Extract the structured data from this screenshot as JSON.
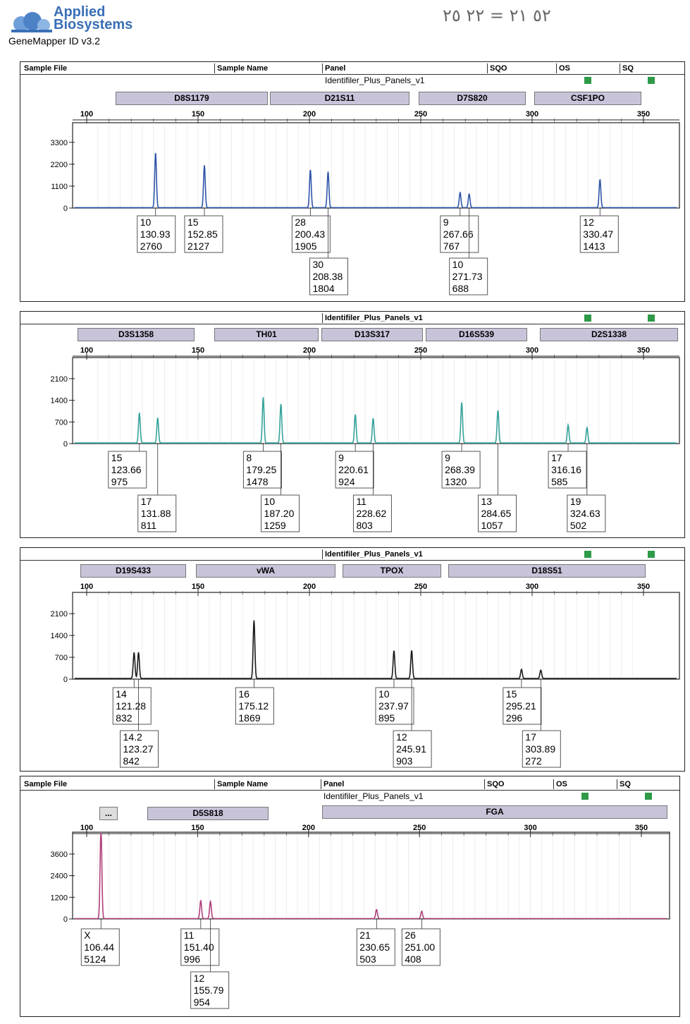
{
  "brand": {
    "line1": "Applied",
    "line2": "Biosystems",
    "product": "GeneMapper ID v3.2",
    "handwritten": "٥٢ ٢١ = ٢٢ ٢٥"
  },
  "header": {
    "sample_file": "Sample File",
    "sample_name": "Sample Name",
    "panel": "Panel",
    "sqo": "SQO",
    "os": "OS",
    "sq": "SQ",
    "panel_value": "Identifiler_Plus_Panels_v1",
    "ellipsis": "..."
  },
  "colors": {
    "blue": "#2f55a8",
    "green": "#35a39a",
    "black": "#1a1a1a",
    "magenta": "#b0407a",
    "locus_bg": "#c9c3da",
    "quality_green": "#2e9a48"
  },
  "chart_data": [
    {
      "type": "line",
      "dye": "blue",
      "x_axis": {
        "min": 100,
        "max": 350,
        "ticks": [
          100,
          150,
          200,
          250,
          300,
          350
        ]
      },
      "y_axis": {
        "min": 0,
        "max": 4000,
        "ticks": [
          0,
          1100,
          2200,
          3300
        ]
      },
      "loci": [
        "D8S1179",
        "D21S11",
        "D7S820",
        "CSF1PO"
      ],
      "peaks": [
        {
          "allele": "10",
          "size": "130.93",
          "height": "2760"
        },
        {
          "allele": "15",
          "size": "152.85",
          "height": "2127"
        },
        {
          "allele": "28",
          "size": "200.43",
          "height": "1905"
        },
        {
          "allele": "30",
          "size": "208.38",
          "height": "1804"
        },
        {
          "allele": "9",
          "size": "267.66",
          "height": "767"
        },
        {
          "allele": "10",
          "size": "271.73",
          "height": "688"
        },
        {
          "allele": "12",
          "size": "330.47",
          "height": "1413"
        }
      ]
    },
    {
      "type": "line",
      "dye": "green",
      "x_axis": {
        "min": 100,
        "max": 350,
        "ticks": [
          100,
          150,
          200,
          250,
          300,
          350
        ]
      },
      "y_axis": {
        "min": 0,
        "max": 2600,
        "ticks": [
          0,
          700,
          1400,
          2100
        ]
      },
      "loci": [
        "D3S1358",
        "TH01",
        "D13S317",
        "D16S539",
        "D2S1338"
      ],
      "peaks": [
        {
          "allele": "15",
          "size": "123.66",
          "height": "975"
        },
        {
          "allele": "17",
          "size": "131.88",
          "height": "811"
        },
        {
          "allele": "8",
          "size": "179.25",
          "height": "1478"
        },
        {
          "allele": "10",
          "size": "187.20",
          "height": "1259"
        },
        {
          "allele": "9",
          "size": "220.61",
          "height": "924"
        },
        {
          "allele": "11",
          "size": "228.62",
          "height": "803"
        },
        {
          "allele": "9",
          "size": "268.39",
          "height": "1320"
        },
        {
          "allele": "13",
          "size": "284.65",
          "height": "1057"
        },
        {
          "allele": "17",
          "size": "316.16",
          "height": "585"
        },
        {
          "allele": "19",
          "size": "324.63",
          "height": "502"
        }
      ]
    },
    {
      "type": "line",
      "dye": "black",
      "x_axis": {
        "min": 100,
        "max": 350,
        "ticks": [
          100,
          150,
          200,
          250,
          300,
          350
        ]
      },
      "y_axis": {
        "min": 0,
        "max": 2600,
        "ticks": [
          0,
          700,
          1400,
          2100
        ]
      },
      "loci": [
        "D19S433",
        "vWA",
        "TPOX",
        "D18S51"
      ],
      "peaks": [
        {
          "allele": "14",
          "size": "121.28",
          "height": "832"
        },
        {
          "allele": "14.2",
          "size": "123.27",
          "height": "842"
        },
        {
          "allele": "16",
          "size": "175.12",
          "height": "1869"
        },
        {
          "allele": "10",
          "size": "237.97",
          "height": "895"
        },
        {
          "allele": "12",
          "size": "245.91",
          "height": "903"
        },
        {
          "allele": "15",
          "size": "295.21",
          "height": "296"
        },
        {
          "allele": "17",
          "size": "303.89",
          "height": "272"
        }
      ]
    },
    {
      "type": "line",
      "dye": "magenta",
      "x_axis": {
        "min": 100,
        "max": 350,
        "ticks": [
          100,
          150,
          200,
          250,
          300,
          350
        ]
      },
      "y_axis": {
        "min": 0,
        "max": 4500,
        "ticks": [
          0,
          1200,
          2400,
          3600
        ]
      },
      "loci": [
        "...",
        "D5S818",
        "FGA"
      ],
      "peaks": [
        {
          "allele": "X",
          "size": "106.44",
          "height": "5124"
        },
        {
          "allele": "11",
          "size": "151.40",
          "height": "996"
        },
        {
          "allele": "12",
          "size": "155.79",
          "height": "954"
        },
        {
          "allele": "21",
          "size": "230.65",
          "height": "503"
        },
        {
          "allele": "26",
          "size": "251.00",
          "height": "408"
        }
      ]
    }
  ]
}
